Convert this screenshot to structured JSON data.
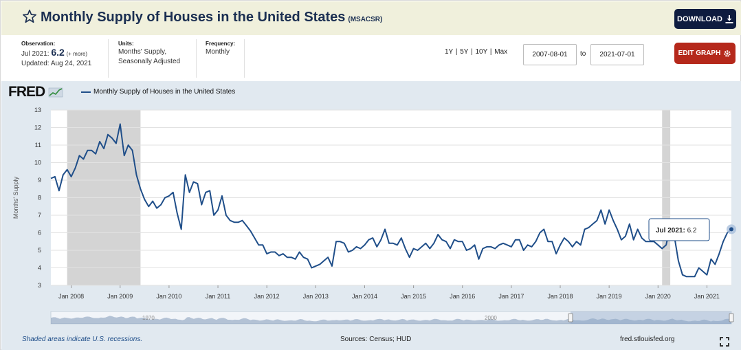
{
  "header": {
    "title": "Monthly Supply of Houses in the United States",
    "series_id": "(MSACSR)",
    "download_label": "DOWNLOAD",
    "star_icon": "star-outline-icon",
    "download_icon": "download-icon"
  },
  "meta": {
    "observation_label": "Observation:",
    "observation_date": "Jul 2021:",
    "observation_value": "6.2",
    "observation_more": "(+ more)",
    "updated": "Updated: Aug 24, 2021",
    "units_label": "Units:",
    "units_line1": "Months' Supply,",
    "units_line2": "Seasonally Adjusted",
    "frequency_label": "Frequency:",
    "frequency_value": "Monthly"
  },
  "controls": {
    "range_1y": "1Y",
    "range_5y": "5Y",
    "range_10y": "10Y",
    "range_max": "Max",
    "separator": "|",
    "start_date": "2007-08-01",
    "to_label": "to",
    "end_date": "2021-07-01",
    "edit_label": "EDIT GRAPH",
    "edit_icon": "gear-icon"
  },
  "footer": {
    "recession_note": "Shaded areas indicate U.S. recessions.",
    "sources": "Sources: Census; HUD",
    "site": "fred.stlouisfed.org",
    "fullscreen_icon": "fullscreen-icon"
  },
  "brand": {
    "logo": "FRED",
    "line_color": "#1f4e89",
    "recession_color": "#d4d4d4",
    "accent_dark": "#0e1c3f",
    "accent_red": "#b5281b"
  },
  "tooltip": {
    "label": "Jul 2021:",
    "value": "6.2"
  },
  "navigator": {
    "label_1970": "1970",
    "label_2000": "2000"
  },
  "chart_data": {
    "type": "line",
    "ylabel": "Months' Supply",
    "ylim": [
      3,
      13
    ],
    "yticks": [
      3,
      4,
      5,
      6,
      7,
      8,
      9,
      10,
      11,
      12,
      13
    ],
    "xticks": [
      "Jan 2008",
      "Jan 2009",
      "Jan 2010",
      "Jan 2011",
      "Jan 2012",
      "Jan 2013",
      "Jan 2014",
      "Jan 2015",
      "Jan 2016",
      "Jan 2017",
      "Jan 2018",
      "Jan 2019",
      "Jan 2020",
      "Jan 2021"
    ],
    "x_start": "2007-08",
    "x_end": "2021-07",
    "recessions": [
      [
        "2007-12",
        "2009-06"
      ],
      [
        "2020-02",
        "2020-04"
      ]
    ],
    "legend": "Monthly Supply of Houses in the United States",
    "grid": true,
    "series": [
      {
        "name": "Monthly Supply of Houses in the United States",
        "color": "#1f4e89",
        "values": [
          9.1,
          9.2,
          8.4,
          9.3,
          9.6,
          9.2,
          9.7,
          10.4,
          10.2,
          10.7,
          10.7,
          10.5,
          11.2,
          10.8,
          11.6,
          11.4,
          11.1,
          12.2,
          10.4,
          11.0,
          10.7,
          9.3,
          8.5,
          7.9,
          7.5,
          7.8,
          7.4,
          7.6,
          8.0,
          8.1,
          8.3,
          7.1,
          6.2,
          9.3,
          8.3,
          8.9,
          8.8,
          7.6,
          8.3,
          8.4,
          7.0,
          7.3,
          8.1,
          7.0,
          6.7,
          6.6,
          6.6,
          6.7,
          6.4,
          6.1,
          5.7,
          5.3,
          5.3,
          4.8,
          4.9,
          4.9,
          4.7,
          4.8,
          4.6,
          4.6,
          4.5,
          4.9,
          4.6,
          4.5,
          4.0,
          4.1,
          4.2,
          4.4,
          4.6,
          4.1,
          5.5,
          5.5,
          5.4,
          4.9,
          5.0,
          5.2,
          5.1,
          5.3,
          5.6,
          5.7,
          5.2,
          5.6,
          6.2,
          5.4,
          5.4,
          5.3,
          5.7,
          5.1,
          4.6,
          5.1,
          5.0,
          5.2,
          5.4,
          5.1,
          5.4,
          5.9,
          5.6,
          5.5,
          5.1,
          5.6,
          5.5,
          5.5,
          5.0,
          5.1,
          5.3,
          4.5,
          5.1,
          5.2,
          5.2,
          5.1,
          5.3,
          5.4,
          5.3,
          5.2,
          5.6,
          5.6,
          5.0,
          5.3,
          5.2,
          5.5,
          6.0,
          6.2,
          5.5,
          5.5,
          4.8,
          5.3,
          5.7,
          5.5,
          5.2,
          5.5,
          5.3,
          6.2,
          6.3,
          6.5,
          6.7,
          7.3,
          6.5,
          7.3,
          6.7,
          6.2,
          5.6,
          5.8,
          6.5,
          5.6,
          6.2,
          5.7,
          5.5,
          5.5,
          5.5,
          5.3,
          5.1,
          5.3,
          6.4,
          5.8,
          4.4,
          3.6,
          3.5,
          3.5,
          3.5,
          4.0,
          3.8,
          3.6,
          4.5,
          4.2,
          4.8,
          5.5,
          6.0,
          6.2
        ]
      }
    ]
  }
}
